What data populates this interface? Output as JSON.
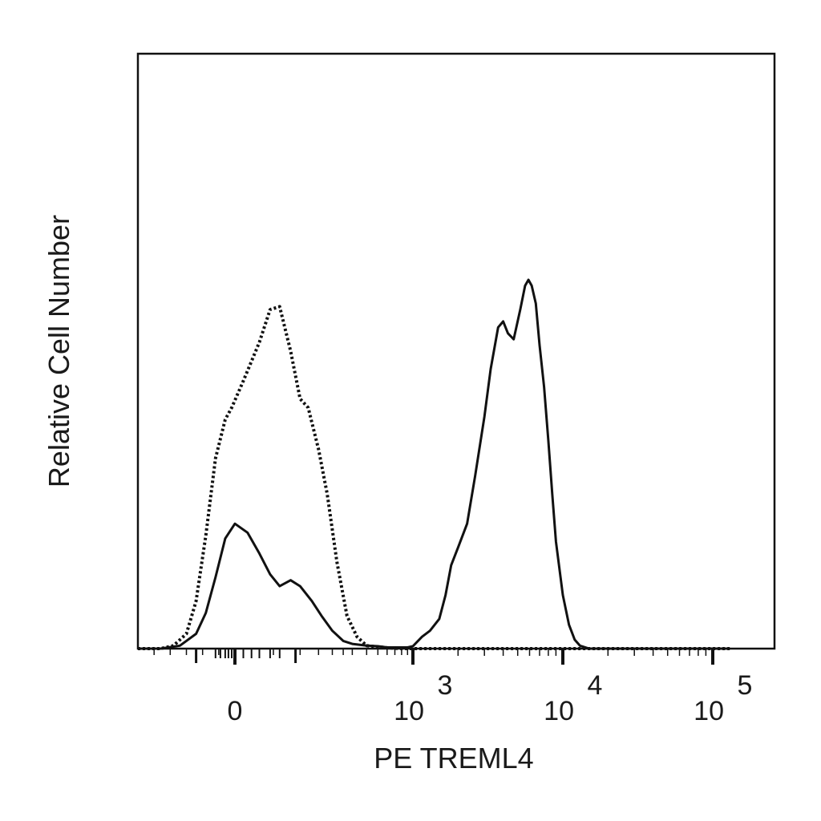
{
  "chart_data": {
    "type": "line",
    "title": "",
    "xlabel": "PE TREML4",
    "ylabel": "Relative Cell Number",
    "x_scale": "biexponential",
    "xlim": [
      -300,
      130000
    ],
    "ylim": [
      0,
      100
    ],
    "grid": false,
    "x_ticks": [
      {
        "value": 0,
        "base": "0",
        "exp": ""
      },
      {
        "value": 1000,
        "base": "10",
        "exp": "3"
      },
      {
        "value": 10000,
        "base": "10",
        "exp": "4"
      },
      {
        "value": 100000,
        "base": "10",
        "exp": "5"
      }
    ],
    "series": [
      {
        "style": "solid",
        "x": [
          -300,
          -230,
          -170,
          -120,
          -90,
          -60,
          -30,
          0,
          15,
          30,
          45,
          60,
          80,
          100,
          130,
          160,
          200,
          250,
          300,
          400,
          500,
          600,
          700,
          800,
          900,
          1000,
          1150,
          1300,
          1500,
          1650,
          1800,
          2000,
          2300,
          2600,
          3000,
          3300,
          3700,
          4000,
          4300,
          4700,
          5200,
          5600,
          5900,
          6200,
          6600,
          7000,
          7500,
          8000,
          8500,
          9000,
          10000,
          11000,
          12000,
          13000,
          15000,
          20000,
          40000,
          130000
        ],
        "y": [
          0,
          0,
          0.5,
          2.5,
          6,
          12,
          18.5,
          21,
          19.5,
          16,
          12.5,
          10.5,
          11.5,
          10.5,
          8,
          5.5,
          3,
          1.3,
          0.8,
          0.5,
          0.4,
          0.2,
          0.2,
          0.2,
          0.2,
          0.4,
          2,
          3,
          5,
          9,
          14,
          17,
          21,
          29,
          39,
          47,
          54,
          55,
          53,
          52,
          57,
          61,
          62,
          61,
          58,
          51,
          44,
          35,
          26,
          18,
          9,
          4,
          1.5,
          0.5,
          0,
          0,
          0,
          0
        ]
      },
      {
        "style": "dotted",
        "x": [
          -300,
          -230,
          -190,
          -150,
          -120,
          -90,
          -60,
          -30,
          -10,
          10,
          30,
          45,
          60,
          80,
          100,
          120,
          150,
          180,
          220,
          270,
          330,
          400,
          500,
          650,
          800,
          1000,
          2000,
          10000,
          130000
        ],
        "y": [
          0,
          0,
          0.5,
          2.5,
          8,
          19,
          32,
          38.5,
          40.5,
          45,
          51.5,
          57,
          57.5,
          50,
          42,
          40.5,
          33.5,
          26,
          14.5,
          5.5,
          2,
          0.5,
          0.3,
          0.1,
          0,
          0,
          0,
          0,
          0
        ]
      }
    ]
  }
}
